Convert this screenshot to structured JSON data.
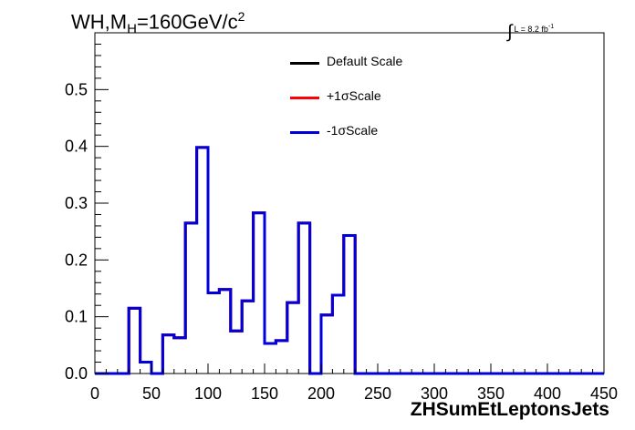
{
  "title": {
    "main": "WH,M",
    "sub": "H",
    "rest": "=160GeV/c",
    "sup": "2"
  },
  "luminosity": {
    "symbol": "∫",
    "text": "L = 8.2 fb",
    "sup": "-1"
  },
  "chart_data": {
    "type": "step-histogram",
    "xlabel": "ZHSumEtLeptonsJets",
    "ylabel": "",
    "xlim": [
      0,
      450
    ],
    "ylim": [
      0,
      0.6
    ],
    "x_ticks": [
      0,
      50,
      100,
      150,
      200,
      250,
      300,
      350,
      400,
      450
    ],
    "y_ticks": [
      0.0,
      0.1,
      0.2,
      0.3,
      0.4,
      0.5
    ],
    "y_tick_labels": [
      "0.0",
      "0.1",
      "0.2",
      "0.3",
      "0.4",
      "0.5"
    ],
    "bin_edges": [
      0,
      10,
      20,
      30,
      40,
      50,
      60,
      70,
      80,
      90,
      100,
      110,
      120,
      130,
      140,
      150,
      160,
      170,
      180,
      190,
      200,
      210,
      220,
      230,
      240,
      250,
      260,
      270,
      280,
      290,
      300,
      310,
      320,
      330,
      340,
      350,
      360,
      370,
      380,
      390,
      400,
      410,
      420,
      430,
      440,
      450
    ],
    "grid": false,
    "legend_position": "top-center",
    "series": [
      {
        "name": "Default Scale",
        "color": "#000000",
        "values": [
          0,
          0,
          0,
          0.115,
          0.02,
          0,
          0.068,
          0.063,
          0.265,
          0.398,
          0.142,
          0.148,
          0.075,
          0.128,
          0.283,
          0.053,
          0.058,
          0.125,
          0.265,
          0,
          0.103,
          0.138,
          0.243,
          0,
          0,
          0,
          0,
          0,
          0,
          0,
          0,
          0,
          0,
          0,
          0,
          0,
          0,
          0,
          0,
          0,
          0,
          0,
          0,
          0,
          0
        ]
      },
      {
        "name": "+1σScale",
        "color": "#ff0000",
        "values": [
          0,
          0,
          0,
          0.115,
          0.02,
          0,
          0.068,
          0.063,
          0.265,
          0.398,
          0.142,
          0.148,
          0.075,
          0.128,
          0.283,
          0.053,
          0.058,
          0.125,
          0.265,
          0,
          0.103,
          0.138,
          0.243,
          0,
          0,
          0,
          0,
          0,
          0,
          0,
          0,
          0,
          0,
          0,
          0,
          0,
          0,
          0,
          0,
          0,
          0,
          0,
          0,
          0,
          0
        ]
      },
      {
        "name": "-1σScale",
        "color": "#0000dd",
        "values": [
          0,
          0,
          0,
          0.115,
          0.02,
          0,
          0.068,
          0.063,
          0.265,
          0.398,
          0.142,
          0.148,
          0.075,
          0.128,
          0.283,
          0.053,
          0.058,
          0.125,
          0.265,
          0,
          0.103,
          0.138,
          0.243,
          0,
          0,
          0,
          0,
          0,
          0,
          0,
          0,
          0,
          0,
          0,
          0,
          0,
          0,
          0,
          0,
          0,
          0,
          0,
          0,
          0,
          0
        ]
      }
    ]
  }
}
